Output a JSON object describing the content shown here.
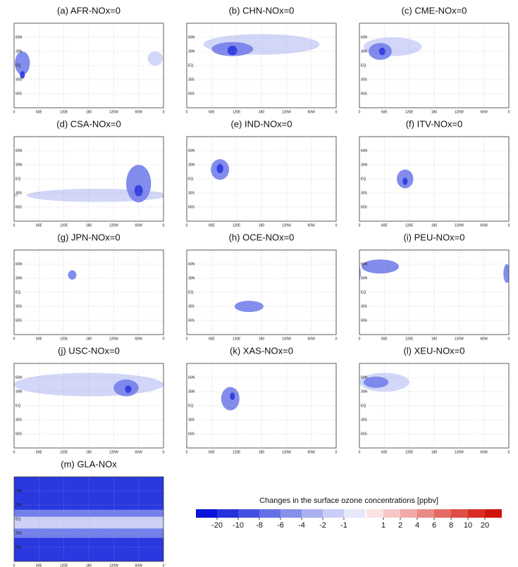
{
  "panels": [
    {
      "title": "(a) AFR-NOx=0"
    },
    {
      "title": "(b) CHN-NOx=0"
    },
    {
      "title": "(c) CME-NOx=0"
    },
    {
      "title": "(d) CSA-NOx=0"
    },
    {
      "title": "(e) IND-NOx=0"
    },
    {
      "title": "(f) ITV-NOx=0"
    },
    {
      "title": "(g) JPN-NOx=0"
    },
    {
      "title": "(h) OCE-NOx=0"
    },
    {
      "title": "(i) PEU-NOx=0"
    },
    {
      "title": "(j) USC-NOx=0"
    },
    {
      "title": "(k) XAS-NOx=0"
    },
    {
      "title": "(l) XEU-NOx=0"
    },
    {
      "title": "(m) GLA-NOx"
    }
  ],
  "lat_labels": [
    "60N",
    "30N",
    "EQ",
    "30S",
    "60S"
  ],
  "lon_labels": [
    "0",
    "60E",
    "120E",
    "180",
    "120W",
    "60W",
    "0"
  ],
  "colorbar": {
    "title": "Changes in the surface ozone concentrations [ppbv]",
    "negative_ticks": [
      -20,
      -10,
      -8,
      -6,
      -4,
      -2,
      -1
    ],
    "positive_ticks": [
      1,
      2,
      4,
      6,
      8,
      10,
      20
    ]
  }
}
